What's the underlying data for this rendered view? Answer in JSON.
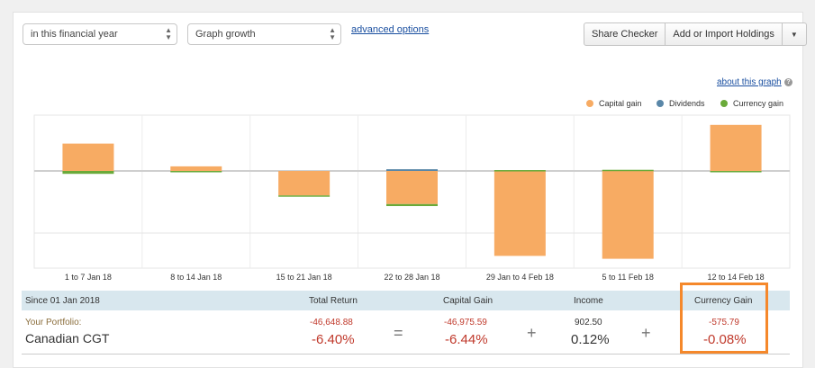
{
  "controls": {
    "period_select": "in this financial year",
    "graph_select": "Graph growth",
    "advanced_link": "advanced options",
    "share_checker": "Share Checker",
    "add_import": "Add or Import Holdings",
    "about_link": "about this graph"
  },
  "legend": [
    {
      "label": "Capital gain",
      "color": "#f7ab63"
    },
    {
      "label": "Dividends",
      "color": "#5a87a8"
    },
    {
      "label": "Currency gain",
      "color": "#6aaa3a"
    }
  ],
  "chart_data": {
    "type": "bar",
    "stacked": true,
    "categories": [
      "1 to 7 Jan 18",
      "8 to 14 Jan 18",
      "15 to 21 Jan 18",
      "22 to 28 Jan 18",
      "29 Jan to 4 Feb 18",
      "5 to 11 Feb 18",
      "12 to 14 Feb 18"
    ],
    "series": [
      {
        "name": "Capital gain",
        "color": "#f7ab63",
        "values": [
          9.5,
          1.6,
          -8.5,
          -11.5,
          -29.5,
          -30.5,
          16
        ]
      },
      {
        "name": "Dividends",
        "color": "#5a87a8",
        "values": [
          0,
          0,
          0,
          0.6,
          0,
          0,
          0
        ]
      },
      {
        "name": "Currency gain",
        "color": "#6aaa3a",
        "values": [
          -1,
          -0.2,
          -0.3,
          -0.7,
          0.3,
          0.4,
          -0.3
        ]
      }
    ],
    "ylim": [
      -31,
      19
    ],
    "grid": true
  },
  "summary": {
    "since": "Since 01 Jan 2018",
    "portfolio_label": "Your Portfolio:",
    "portfolio_name": "Canadian CGT",
    "total_return": {
      "header": "Total Return",
      "amount": "-46,648.88",
      "percent": "-6.40%"
    },
    "capital_gain": {
      "header": "Capital Gain",
      "amount": "-46,975.59",
      "percent": "-6.44%"
    },
    "income": {
      "header": "Income",
      "amount": "902.50",
      "percent": "0.12%"
    },
    "currency_gain": {
      "header": "Currency Gain",
      "amount": "-575.79",
      "percent": "-0.08%"
    },
    "op_equals": "=",
    "op_plus": "+"
  }
}
